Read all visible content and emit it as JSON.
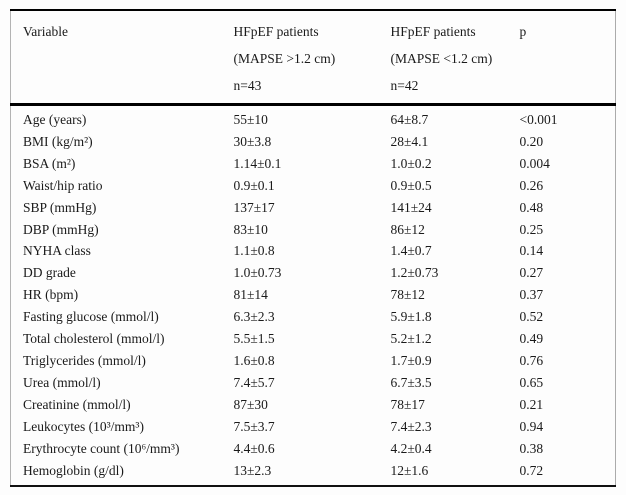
{
  "table": {
    "columns": {
      "variable": "Variable",
      "group1": {
        "line1": "HFpEF patients",
        "line2": "(MAPSE >1.2 cm)",
        "line3": "n=43"
      },
      "group2": {
        "line1": "HFpEF patients",
        "line2": "(MAPSE <1.2 cm)",
        "line3": "n=42"
      },
      "p": "p"
    },
    "rows": [
      {
        "variable": "Age (years)",
        "group1": "55±10",
        "group2": "64±8.7",
        "p": "<0.001"
      },
      {
        "variable": "BMI (kg/m²)",
        "group1": "30±3.8",
        "group2": "28±4.1",
        "p": "0.20"
      },
      {
        "variable": "BSA (m²)",
        "group1": "1.14±0.1",
        "group2": "1.0±0.2",
        "p": "0.004"
      },
      {
        "variable": "Waist/hip ratio",
        "group1": "0.9±0.1",
        "group2": "0.9±0.5",
        "p": "0.26"
      },
      {
        "variable": "SBP (mmHg)",
        "group1": "137±17",
        "group2": "141±24",
        "p": "0.48"
      },
      {
        "variable": "DBP (mmHg)",
        "group1": "83±10",
        "group2": "86±12",
        "p": "0.25"
      },
      {
        "variable": "NYHA class",
        "group1": "1.1±0.8",
        "group2": "1.4±0.7",
        "p": "0.14"
      },
      {
        "variable": "DD grade",
        "group1": "1.0±0.73",
        "group2": "1.2±0.73",
        "p": "0.27"
      },
      {
        "variable": "HR (bpm)",
        "group1": "81±14",
        "group2": "78±12",
        "p": "0.37"
      },
      {
        "variable": "Fasting glucose (mmol/l)",
        "group1": "6.3±2.3",
        "group2": "5.9±1.8",
        "p": "0.52"
      },
      {
        "variable": "Total cholesterol (mmol/l)",
        "group1": "5.5±1.5",
        "group2": "5.2±1.2",
        "p": "0.49"
      },
      {
        "variable": "Triglycerides (mmol/l)",
        "group1": "1.6±0.8",
        "group2": "1.7±0.9",
        "p": "0.76"
      },
      {
        "variable": "Urea (mmol/l)",
        "group1": "7.4±5.7",
        "group2": "6.7±3.5",
        "p": "0.65"
      },
      {
        "variable": "Creatinine (mmol/l)",
        "group1": "87±30",
        "group2": "78±17",
        "p": "0.21"
      },
      {
        "variable": "Leukocytes (10³/mm³)",
        "group1": "7.5±3.7",
        "group2": "7.4±2.3",
        "p": "0.94"
      },
      {
        "variable": "Erythrocyte count (10⁶/mm³)",
        "group1": "4.4±0.6",
        "group2": "4.2±0.4",
        "p": "0.38"
      },
      {
        "variable": "Hemoglobin (g/dl)",
        "group1": "13±2.3",
        "group2": "12±1.6",
        "p": "0.72"
      }
    ]
  },
  "colors": {
    "text": "#1a1a1a",
    "rule": "#000000",
    "background": "#fdfdfd"
  }
}
